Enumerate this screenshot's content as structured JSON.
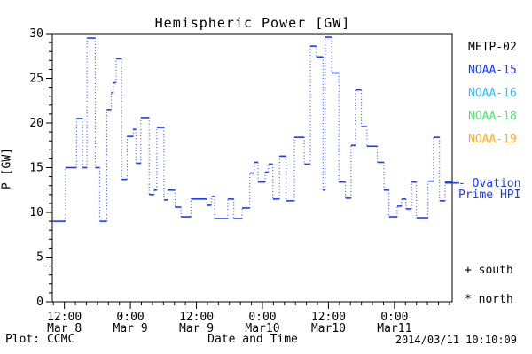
{
  "title": "Hemispheric Power [GW]",
  "footer": {
    "plot_credit": "Plot: CCMC",
    "timestamp": "2014/03/11 10:10:09"
  },
  "legend": {
    "satellites": [
      {
        "label": "METP-02",
        "color": "#000000"
      },
      {
        "label": "NOAA-15",
        "color": "#1a3cff"
      },
      {
        "label": "NOAA-16",
        "color": "#33bbff"
      },
      {
        "label": "NOAA-18",
        "color": "#55dd77"
      },
      {
        "label": "NOAA-19",
        "color": "#ffaa22"
      }
    ]
  },
  "annotations": {
    "ovation_line1": "- Ovation",
    "ovation_line2": "Prime HPI",
    "south_marker": "+ south",
    "north_marker": "* north"
  },
  "colors": {
    "series_blue": "#1a3cff",
    "axis_black": "#000000",
    "background": "#ffffff"
  },
  "chart_data": {
    "type": "line",
    "style": "step",
    "title": "Hemispheric Power [GW]",
    "xlabel": "Date and Time",
    "ylabel": "P [GW]",
    "ylim": [
      0,
      30
    ],
    "y_major_ticks": [
      0,
      5,
      10,
      15,
      20,
      25,
      30
    ],
    "y_minor_step": 1,
    "grid": false,
    "legend_position": "right-outside",
    "x_unit": "hours since 2014-03-08 00:00 UT",
    "xlim_hours": [
      9.8,
      82.5
    ],
    "x_major_ticks": [
      {
        "hours": 12,
        "time": "12:00",
        "date": "Mar 8"
      },
      {
        "hours": 24,
        "time": "0:00",
        "date": "Mar 9"
      },
      {
        "hours": 36,
        "time": "12:00",
        "date": "Mar 9"
      },
      {
        "hours": 48,
        "time": "0:00",
        "date": "Mar10"
      },
      {
        "hours": 60,
        "time": "12:00",
        "date": "Mar10"
      },
      {
        "hours": 72,
        "time": "0:00",
        "date": "Mar11"
      }
    ],
    "x_minor_step_hours": 2,
    "series": [
      {
        "name": "Ovation Prime HPI",
        "color": "#1a3cff",
        "steps": [
          [
            9.8,
            9.0
          ],
          [
            12.2,
            15.0
          ],
          [
            14.2,
            20.5
          ],
          [
            15.3,
            15.0
          ],
          [
            16.1,
            29.5
          ],
          [
            17.6,
            15.0
          ],
          [
            18.4,
            9.0
          ],
          [
            19.7,
            21.5
          ],
          [
            20.5,
            23.4
          ],
          [
            20.9,
            24.5
          ],
          [
            21.4,
            27.2
          ],
          [
            22.4,
            13.7
          ],
          [
            23.4,
            18.5
          ],
          [
            24.5,
            19.3
          ],
          [
            25.0,
            15.5
          ],
          [
            25.9,
            20.6
          ],
          [
            27.4,
            12.0
          ],
          [
            28.3,
            12.5
          ],
          [
            28.8,
            19.5
          ],
          [
            30.1,
            11.4
          ],
          [
            30.8,
            12.5
          ],
          [
            32.1,
            10.6
          ],
          [
            33.2,
            9.5
          ],
          [
            35.0,
            11.5
          ],
          [
            37.9,
            10.8
          ],
          [
            38.7,
            11.8
          ],
          [
            39.3,
            9.3
          ],
          [
            41.7,
            11.5
          ],
          [
            42.8,
            9.3
          ],
          [
            44.3,
            10.5
          ],
          [
            45.7,
            14.4
          ],
          [
            46.5,
            15.6
          ],
          [
            47.2,
            13.4
          ],
          [
            48.5,
            14.5
          ],
          [
            49.1,
            15.4
          ],
          [
            49.9,
            11.5
          ],
          [
            51.1,
            16.3
          ],
          [
            52.3,
            11.3
          ],
          [
            53.8,
            18.4
          ],
          [
            55.6,
            15.4
          ],
          [
            56.7,
            28.6
          ],
          [
            57.8,
            27.4
          ],
          [
            59.0,
            12.5
          ],
          [
            59.4,
            29.6
          ],
          [
            60.6,
            25.6
          ],
          [
            61.9,
            13.4
          ],
          [
            63.1,
            11.6
          ],
          [
            64.1,
            17.5
          ],
          [
            64.9,
            23.7
          ],
          [
            66.0,
            19.6
          ],
          [
            67.0,
            17.4
          ],
          [
            68.9,
            15.6
          ],
          [
            70.1,
            12.5
          ],
          [
            71.0,
            9.5
          ],
          [
            72.5,
            10.7
          ],
          [
            73.3,
            11.5
          ],
          [
            74.1,
            10.4
          ],
          [
            75.1,
            13.4
          ],
          [
            76.0,
            9.4
          ],
          [
            78.1,
            13.5
          ],
          [
            79.1,
            18.4
          ],
          [
            80.2,
            11.3
          ],
          [
            81.2,
            13.4
          ]
        ]
      }
    ],
    "ovation_axis_marker_gw": 13.3
  }
}
